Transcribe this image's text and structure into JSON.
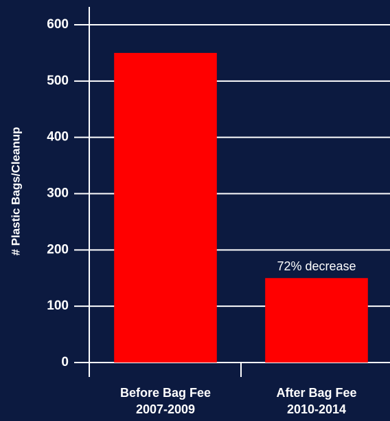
{
  "chart_data": {
    "type": "bar",
    "ylabel": "# Plastic Bags/Cleanup",
    "categories": [
      "Before Bag Fee\n2007-2009",
      "After Bag Fee\n2010-2014"
    ],
    "values": [
      550,
      150
    ],
    "color": "#ff0000",
    "annotation": "72% decrease",
    "ylim": [
      0,
      600
    ],
    "yticks": [
      0,
      100,
      200,
      300,
      400,
      500,
      600
    ],
    "grid": true
  }
}
